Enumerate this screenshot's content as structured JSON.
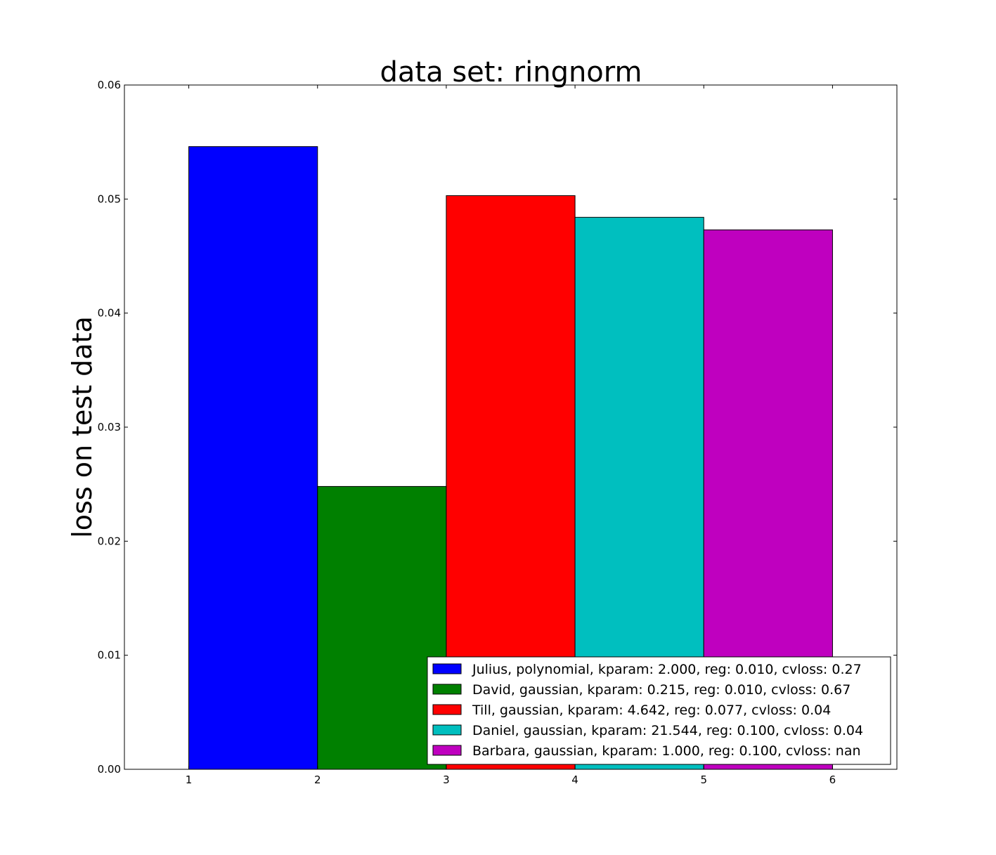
{
  "chart_data": {
    "type": "bar",
    "title": "data set: ringnorm",
    "xlabel": "",
    "ylabel": "loss on test data",
    "xlim": [
      0.5,
      6.5
    ],
    "ylim": [
      0,
      0.06
    ],
    "x_ticks": [
      "1",
      "2",
      "3",
      "4",
      "5",
      "6"
    ],
    "y_ticks": [
      "0.00",
      "0.01",
      "0.02",
      "0.03",
      "0.04",
      "0.05",
      "0.06"
    ],
    "bar_width": 1,
    "legend_position": "lower-right",
    "grid": false,
    "series": [
      {
        "name": "Julius, polynomial, kparam: 2.000, reg: 0.010, cvloss: 0.27",
        "x_start": 1,
        "value": 0.0546,
        "color": "#0000ff"
      },
      {
        "name": "David, gaussian, kparam: 0.215, reg: 0.010, cvloss: 0.67",
        "x_start": 2,
        "value": 0.0248,
        "color": "#008000"
      },
      {
        "name": "Till, gaussian, kparam: 4.642, reg: 0.077, cvloss: 0.04",
        "x_start": 3,
        "value": 0.0503,
        "color": "#ff0000"
      },
      {
        "name": "Daniel, gaussian, kparam: 21.544, reg: 0.100, cvloss: 0.04",
        "x_start": 4,
        "value": 0.0484,
        "color": "#00bfbf"
      },
      {
        "name": "Barbara, gaussian, kparam: 1.000, reg: 0.100, cvloss: nan",
        "x_start": 5,
        "value": 0.0473,
        "color": "#bf00bf"
      }
    ]
  }
}
